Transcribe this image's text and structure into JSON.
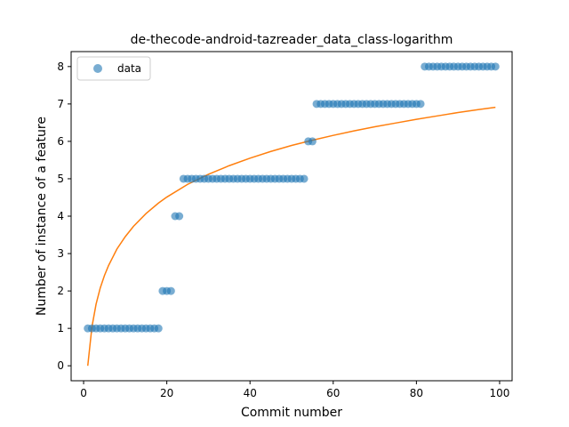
{
  "chart_data": {
    "type": "scatter",
    "title": "de-thecode-android-tazreader_data_class-logarithm",
    "xlabel": "Commit number",
    "ylabel": "Number of instance of a feature",
    "xlim": [
      -3,
      103
    ],
    "ylim": [
      -0.4,
      8.4
    ],
    "xticks": [
      0,
      20,
      40,
      60,
      80,
      100
    ],
    "yticks": [
      0,
      1,
      2,
      3,
      4,
      5,
      6,
      7,
      8
    ],
    "legend": {
      "entries": [
        "data"
      ],
      "placement": "top-left"
    },
    "colors": {
      "data": "#1f77b4",
      "fit": "#ff7f0e"
    },
    "series": [
      {
        "name": "data",
        "kind": "scatter",
        "x": [
          1,
          2,
          3,
          4,
          5,
          6,
          7,
          8,
          9,
          10,
          11,
          12,
          13,
          14,
          15,
          16,
          17,
          18,
          19,
          20,
          21,
          22,
          23,
          24,
          25,
          26,
          27,
          28,
          29,
          30,
          31,
          32,
          33,
          34,
          35,
          36,
          37,
          38,
          39,
          40,
          41,
          42,
          43,
          44,
          45,
          46,
          47,
          48,
          49,
          50,
          51,
          52,
          53,
          54,
          55,
          56,
          57,
          58,
          59,
          60,
          61,
          62,
          63,
          64,
          65,
          66,
          67,
          68,
          69,
          70,
          71,
          72,
          73,
          74,
          75,
          76,
          77,
          78,
          79,
          80,
          81,
          82,
          83,
          84,
          85,
          86,
          87,
          88,
          89,
          90,
          91,
          92,
          93,
          94,
          95,
          96,
          97,
          98,
          99
        ],
        "y": [
          1,
          1,
          1,
          1,
          1,
          1,
          1,
          1,
          1,
          1,
          1,
          1,
          1,
          1,
          1,
          1,
          1,
          1,
          2,
          2,
          2,
          4,
          4,
          5,
          5,
          5,
          5,
          5,
          5,
          5,
          5,
          5,
          5,
          5,
          5,
          5,
          5,
          5,
          5,
          5,
          5,
          5,
          5,
          5,
          5,
          5,
          5,
          5,
          5,
          5,
          5,
          5,
          5,
          6,
          6,
          7,
          7,
          7,
          7,
          7,
          7,
          7,
          7,
          7,
          7,
          7,
          7,
          7,
          7,
          7,
          7,
          7,
          7,
          7,
          7,
          7,
          7,
          7,
          7,
          7,
          7,
          8,
          8,
          8,
          8,
          8,
          8,
          8,
          8,
          8,
          8,
          8,
          8,
          8,
          8,
          8,
          8,
          8,
          8
        ]
      },
      {
        "kind": "line",
        "x": [
          1,
          2,
          3,
          4,
          5,
          6,
          8,
          10,
          12,
          15,
          18,
          20,
          25,
          30,
          35,
          40,
          45,
          50,
          55,
          60,
          65,
          70,
          75,
          80,
          85,
          90,
          95,
          99
        ],
        "y": [
          0,
          1.04,
          1.65,
          2.08,
          2.41,
          2.68,
          3.12,
          3.45,
          3.73,
          4.07,
          4.35,
          4.51,
          4.85,
          5.12,
          5.35,
          5.55,
          5.73,
          5.89,
          6.03,
          6.16,
          6.28,
          6.39,
          6.49,
          6.59,
          6.68,
          6.77,
          6.85,
          6.91
        ]
      }
    ]
  }
}
